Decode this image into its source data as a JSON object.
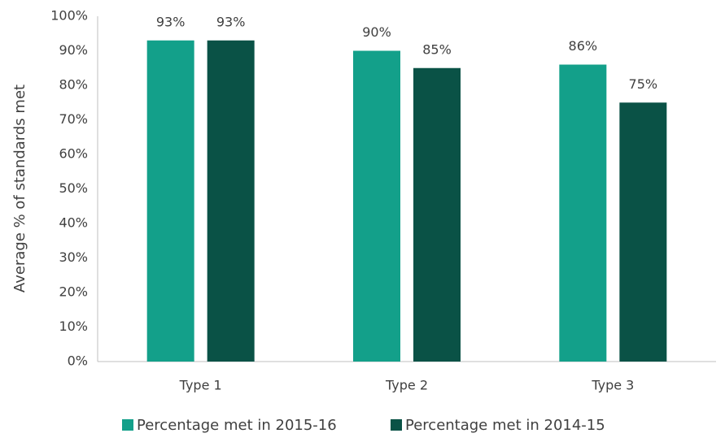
{
  "chart_data": {
    "type": "bar",
    "y_label": "Average % of standards met",
    "categories": [
      "Type 1",
      "Type 2",
      "Type 3"
    ],
    "series": [
      {
        "name": "Percentage met in 2015-16",
        "color": "#13a08a",
        "values": [
          93,
          90,
          86
        ],
        "value_labels": [
          "93%",
          "90%",
          "86%"
        ]
      },
      {
        "name": "Percentage met in 2014-15",
        "color": "#0a5246",
        "values": [
          93,
          85,
          75
        ],
        "value_labels": [
          "93%",
          "85%",
          "75%"
        ]
      }
    ],
    "ylim": [
      0,
      100
    ],
    "yticks": [
      {
        "value": 0,
        "label": "0%"
      },
      {
        "value": 10,
        "label": "10%"
      },
      {
        "value": 20,
        "label": "20%"
      },
      {
        "value": 30,
        "label": "30%"
      },
      {
        "value": 40,
        "label": "40%"
      },
      {
        "value": 50,
        "label": "50%"
      },
      {
        "value": 60,
        "label": "60%"
      },
      {
        "value": 70,
        "label": "70%"
      },
      {
        "value": 80,
        "label": "80%"
      },
      {
        "value": 90,
        "label": "90%"
      },
      {
        "value": 100,
        "label": "100%"
      }
    ],
    "grid": false,
    "legend": "bottom"
  }
}
